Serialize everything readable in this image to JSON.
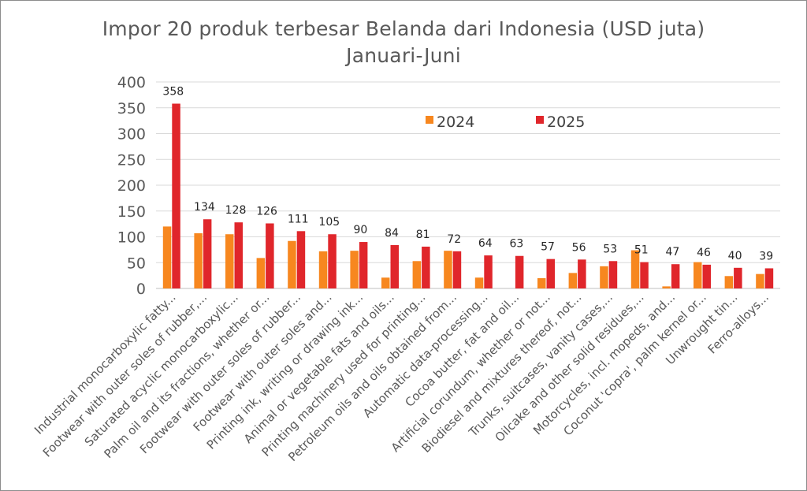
{
  "chart_data": {
    "type": "bar",
    "title": "Impor 20 produk terbesar Belanda dari Indonesia (USD juta)",
    "subtitle": "Januari-Juni",
    "xlabel": "",
    "ylabel": "",
    "ylim": [
      0,
      400
    ],
    "yticks": [
      "0",
      "50",
      "100",
      "150",
      "200",
      "250",
      "300",
      "350",
      "400"
    ],
    "grid": true,
    "legend_position": "top-right",
    "categories": [
      "Industrial monocarboxylic fatty...",
      "Footwear with outer soles of rubber,...",
      "Saturated acyclic monocarboxylic...",
      "Palm oil and its fractions, whether or...",
      "Footwear with outer soles of rubber...",
      "Footwear with outer soles and...",
      "Printing ink, writing or drawing ink...",
      "Animal or vegetable fats and oils...",
      "Printing machinery used for printing...",
      "Petroleum oils and oils obtained from...",
      "Automatic data-processing...",
      "Cocoa butter, fat and oil...",
      "Artificial corundum, whether or not...",
      "Biodiesel and mixtures thereof, not...",
      "Trunks, suitcases, vanity cases,...",
      "Oilcake and other solid residues,...",
      "Motorcycles, incl. mopeds, and...",
      "Coconut 'copra', palm kernel or...",
      "Unwrought tin...",
      "Ferro-alloys..."
    ],
    "series": [
      {
        "name": "2024",
        "color": "#f7871f",
        "values": [
          120,
          107,
          105,
          59,
          92,
          72,
          73,
          21,
          53,
          73,
          21,
          0,
          20,
          30,
          43,
          74,
          4,
          51,
          24,
          28
        ]
      },
      {
        "name": "2025",
        "color": "#e0262b",
        "values": [
          358,
          134,
          128,
          126,
          111,
          105,
          90,
          84,
          81,
          72,
          64,
          63,
          57,
          56,
          53,
          51,
          47,
          46,
          40,
          39
        ],
        "data_labels": [
          "358",
          "134",
          "128",
          "126",
          "111",
          "105",
          "90",
          "84",
          "81",
          "72",
          "64",
          "63",
          "57",
          "56",
          "53",
          "51",
          "47",
          "46",
          "40",
          "39"
        ]
      }
    ]
  }
}
